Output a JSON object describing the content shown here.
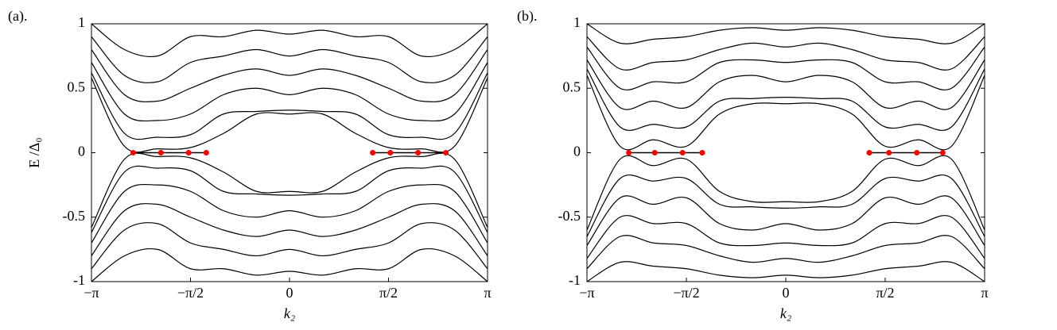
{
  "chart_data": [
    {
      "type": "line",
      "panel_label": "(a).",
      "xlabel": "k₂",
      "ylabel": "E /Δ₀",
      "x": [
        -3.1416,
        -2.618,
        -2.0944,
        -1.5708,
        -1.0472,
        -0.5236,
        0,
        0.5236,
        1.0472,
        1.5708,
        2.0944,
        2.618,
        3.1416
      ],
      "xlim": [
        -3.1416,
        3.1416
      ],
      "xticks": [
        {
          "value": -3.1416,
          "label": "−π"
        },
        {
          "value": -1.5708,
          "label": "−π/2"
        },
        0,
        {
          "value": 1.5708,
          "label": "π/2"
        },
        {
          "value": 3.1416,
          "label": "π"
        }
      ],
      "ylim": [
        -1,
        1
      ],
      "yticks": [
        -1,
        -0.5,
        0,
        0.5,
        1
      ],
      "series": [
        {
          "color": "#000000",
          "values": [
            0.58,
            0.05,
            0.03,
            0.04,
            0.15,
            0.3,
            0.3,
            0.3,
            0.15,
            0.04,
            0.03,
            0.05,
            0.58
          ]
        },
        {
          "color": "#000000",
          "values": [
            0.62,
            0.15,
            0.12,
            0.14,
            0.3,
            0.32,
            0.33,
            0.32,
            0.3,
            0.14,
            0.12,
            0.15,
            0.62
          ]
        },
        {
          "color": "#000000",
          "values": [
            0.7,
            0.3,
            0.25,
            0.3,
            0.45,
            0.5,
            0.45,
            0.5,
            0.45,
            0.3,
            0.25,
            0.3,
            0.7
          ]
        },
        {
          "color": "#000000",
          "values": [
            0.8,
            0.45,
            0.4,
            0.5,
            0.6,
            0.65,
            0.6,
            0.65,
            0.6,
            0.5,
            0.4,
            0.45,
            0.8
          ]
        },
        {
          "color": "#000000",
          "values": [
            0.9,
            0.6,
            0.55,
            0.7,
            0.75,
            0.8,
            0.75,
            0.8,
            0.75,
            0.7,
            0.55,
            0.6,
            0.9
          ]
        },
        {
          "color": "#000000",
          "values": [
            1.0,
            0.8,
            0.75,
            0.9,
            0.9,
            0.95,
            0.92,
            0.95,
            0.9,
            0.9,
            0.75,
            0.8,
            1.0
          ]
        },
        {
          "color": "#000000",
          "values": [
            -0.58,
            -0.05,
            -0.03,
            -0.04,
            -0.15,
            -0.3,
            -0.3,
            -0.3,
            -0.15,
            -0.04,
            -0.03,
            -0.05,
            -0.58
          ]
        },
        {
          "color": "#000000",
          "values": [
            -0.62,
            -0.15,
            -0.12,
            -0.14,
            -0.3,
            -0.32,
            -0.33,
            -0.32,
            -0.3,
            -0.14,
            -0.12,
            -0.15,
            -0.62
          ]
        },
        {
          "color": "#000000",
          "values": [
            -0.7,
            -0.3,
            -0.25,
            -0.3,
            -0.45,
            -0.5,
            -0.45,
            -0.5,
            -0.45,
            -0.3,
            -0.25,
            -0.3,
            -0.7
          ]
        },
        {
          "color": "#000000",
          "values": [
            -0.8,
            -0.45,
            -0.4,
            -0.5,
            -0.6,
            -0.65,
            -0.6,
            -0.65,
            -0.6,
            -0.5,
            -0.4,
            -0.45,
            -0.8
          ]
        },
        {
          "color": "#000000",
          "values": [
            -0.9,
            -0.6,
            -0.55,
            -0.7,
            -0.75,
            -0.8,
            -0.75,
            -0.8,
            -0.75,
            -0.7,
            -0.55,
            -0.6,
            -0.9
          ]
        },
        {
          "color": "#000000",
          "values": [
            -1.0,
            -0.8,
            -0.75,
            -0.9,
            -0.9,
            -0.95,
            -0.92,
            -0.95,
            -0.9,
            -0.9,
            -0.75,
            -0.8,
            -1.0
          ]
        },
        {
          "color": "#ff0000",
          "marker": true,
          "x": [
            -2.48,
            -2.04,
            -1.6,
            -1.32
          ],
          "values": [
            0,
            0,
            0,
            0
          ]
        },
        {
          "color": "#ff0000",
          "marker": true,
          "x": [
            1.32,
            1.6,
            2.04,
            2.48
          ],
          "values": [
            0,
            0,
            0,
            0
          ]
        }
      ]
    },
    {
      "type": "line",
      "panel_label": "(b).",
      "xlabel": "k₂",
      "x": [
        -3.1416,
        -2.618,
        -2.0944,
        -1.5708,
        -1.0472,
        -0.5236,
        0,
        0.5236,
        1.0472,
        1.5708,
        2.0944,
        2.618,
        3.1416
      ],
      "xlim": [
        -3.1416,
        3.1416
      ],
      "xticks": [
        {
          "value": -3.1416,
          "label": "−π"
        },
        {
          "value": -1.5708,
          "label": "−π/2"
        },
        0,
        {
          "value": 1.5708,
          "label": "π/2"
        },
        {
          "value": 3.1416,
          "label": "π"
        }
      ],
      "ylim": [
        -1,
        1
      ],
      "yticks": [
        -1,
        -0.5,
        0,
        0.5,
        1
      ],
      "series": [
        {
          "color": "#000000",
          "values": [
            0.6,
            0.05,
            0.1,
            0.05,
            0.3,
            0.38,
            0.38,
            0.38,
            0.3,
            0.05,
            0.1,
            0.05,
            0.6
          ]
        },
        {
          "color": "#000000",
          "values": [
            0.65,
            0.2,
            0.22,
            0.2,
            0.4,
            0.42,
            0.43,
            0.42,
            0.4,
            0.2,
            0.22,
            0.2,
            0.65
          ]
        },
        {
          "color": "#000000",
          "values": [
            0.72,
            0.35,
            0.4,
            0.35,
            0.55,
            0.6,
            0.55,
            0.6,
            0.55,
            0.35,
            0.4,
            0.35,
            0.72
          ]
        },
        {
          "color": "#000000",
          "values": [
            0.82,
            0.5,
            0.55,
            0.55,
            0.7,
            0.72,
            0.7,
            0.72,
            0.7,
            0.55,
            0.55,
            0.5,
            0.82
          ]
        },
        {
          "color": "#000000",
          "values": [
            0.9,
            0.65,
            0.7,
            0.72,
            0.8,
            0.85,
            0.82,
            0.85,
            0.8,
            0.72,
            0.7,
            0.65,
            0.9
          ]
        },
        {
          "color": "#000000",
          "values": [
            1.0,
            0.85,
            0.88,
            0.9,
            0.95,
            0.97,
            0.95,
            0.97,
            0.95,
            0.9,
            0.88,
            0.85,
            1.0
          ]
        },
        {
          "color": "#000000",
          "values": [
            -0.6,
            -0.05,
            -0.1,
            -0.05,
            -0.3,
            -0.38,
            -0.38,
            -0.38,
            -0.3,
            -0.05,
            -0.1,
            -0.05,
            -0.6
          ]
        },
        {
          "color": "#000000",
          "values": [
            -0.65,
            -0.2,
            -0.22,
            -0.2,
            -0.4,
            -0.42,
            -0.43,
            -0.42,
            -0.4,
            -0.2,
            -0.22,
            -0.2,
            -0.65
          ]
        },
        {
          "color": "#000000",
          "values": [
            -0.72,
            -0.35,
            -0.4,
            -0.35,
            -0.55,
            -0.6,
            -0.55,
            -0.6,
            -0.55,
            -0.35,
            -0.4,
            -0.35,
            -0.72
          ]
        },
        {
          "color": "#000000",
          "values": [
            -0.82,
            -0.5,
            -0.55,
            -0.55,
            -0.7,
            -0.72,
            -0.7,
            -0.72,
            -0.7,
            -0.55,
            -0.55,
            -0.5,
            -0.82
          ]
        },
        {
          "color": "#000000",
          "values": [
            -0.9,
            -0.65,
            -0.7,
            -0.72,
            -0.8,
            -0.85,
            -0.82,
            -0.85,
            -0.8,
            -0.72,
            -0.7,
            -0.65,
            -0.9
          ]
        },
        {
          "color": "#000000",
          "values": [
            -1.0,
            -0.85,
            -0.88,
            -0.9,
            -0.95,
            -0.97,
            -0.95,
            -0.97,
            -0.95,
            -0.9,
            -0.88,
            -0.85,
            -1.0
          ]
        },
        {
          "color": "#ff0000",
          "marker": true,
          "x": [
            -2.48,
            -2.07,
            -1.63,
            -1.32
          ],
          "values": [
            0,
            0,
            0,
            0
          ]
        },
        {
          "color": "#ff0000",
          "marker": true,
          "x": [
            1.32,
            1.63,
            2.07,
            2.48
          ],
          "values": [
            0,
            0,
            0,
            0
          ]
        }
      ]
    }
  ]
}
